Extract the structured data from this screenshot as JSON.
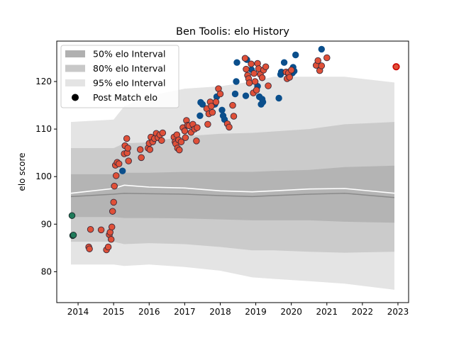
{
  "chart_data": {
    "type": "scatter",
    "title": "Ben Toolis: elo History",
    "xlabel": "",
    "ylabel": "elo score",
    "xlim": [
      2013.4,
      2023.3
    ],
    "ylim": [
      73.5,
      128.5
    ],
    "x_ticks": [
      2014,
      2015,
      2016,
      2017,
      2018,
      2019,
      2020,
      2021,
      2022,
      2023
    ],
    "y_ticks": [
      80,
      90,
      100,
      110,
      120
    ],
    "grid": false,
    "legend_position": "upper-left",
    "legend": [
      {
        "label": "50% elo Interval",
        "kind": "band",
        "color": "#b0b0b0"
      },
      {
        "label": "80% elo Interval",
        "kind": "band",
        "color": "#c8c8c8"
      },
      {
        "label": "95% elo Interval",
        "kind": "band",
        "color": "#e4e4e4"
      },
      {
        "label": "Post Match elo",
        "kind": "marker",
        "color": "#000000"
      }
    ],
    "colors": {
      "win": "#e05038",
      "loss": "#0b4f8c",
      "draw": "#1f7a5a",
      "latest_fill": "#e05038",
      "latest_edge": "#cc0000",
      "mean_line": "#ffffff",
      "median_line": "#8a8a8a",
      "band50": "#b0b0b0",
      "band80": "#c8c8c8",
      "band95": "#e4e4e4"
    },
    "bands": {
      "x": [
        2013.8,
        2015.0,
        2015.3,
        2016.0,
        2017.0,
        2018.0,
        2018.9,
        2019.5,
        2020.5,
        2021.5,
        2022.9
      ],
      "p2_5": [
        81.5,
        81.5,
        81.2,
        81.5,
        81.0,
        80.2,
        78.8,
        78.5,
        78.0,
        77.5,
        76.2
      ],
      "p10": [
        86.3,
        86.3,
        85.8,
        86.0,
        85.8,
        85.2,
        84.5,
        84.5,
        84.2,
        84.0,
        84.2
      ],
      "p25": [
        91.5,
        91.5,
        91.3,
        91.3,
        91.2,
        91.0,
        90.8,
        90.8,
        90.8,
        90.5,
        90.3
      ],
      "median": [
        95.8,
        96.3,
        96.5,
        96.4,
        96.3,
        96.0,
        95.8,
        96.0,
        96.3,
        96.5,
        95.6
      ],
      "mean": [
        96.5,
        97.5,
        98.2,
        97.8,
        97.6,
        97.0,
        96.8,
        97.0,
        97.4,
        97.5,
        96.5
      ],
      "p75": [
        100.5,
        100.5,
        100.8,
        100.8,
        101.0,
        101.0,
        101.0,
        101.2,
        101.4,
        102.0,
        102.3
      ],
      "p90": [
        106.0,
        106.0,
        107.0,
        107.2,
        108.5,
        109.0,
        109.2,
        109.5,
        110.0,
        111.0,
        111.5
      ],
      "p97_5": [
        111.5,
        112.0,
        114.8,
        117.0,
        118.5,
        119.0,
        120.0,
        121.0,
        121.0,
        121.0,
        119.8
      ]
    },
    "series": [
      {
        "name": "",
        "result": "draw",
        "points": [
          [
            2013.83,
            91.8
          ],
          [
            2013.85,
            87.6
          ],
          [
            2013.87,
            87.7
          ]
        ]
      },
      {
        "name": "",
        "result": "loss",
        "points": [
          [
            2015.25,
            101.2
          ],
          [
            2017.43,
            112.8
          ],
          [
            2017.45,
            115.6
          ],
          [
            2017.5,
            115.2
          ],
          [
            2017.85,
            115.2
          ],
          [
            2017.9,
            116.8
          ],
          [
            2018.05,
            114.0
          ],
          [
            2018.08,
            112.8
          ],
          [
            2018.12,
            112.0
          ],
          [
            2018.42,
            117.4
          ],
          [
            2018.45,
            120.0
          ],
          [
            2018.47,
            124.0
          ],
          [
            2018.72,
            117.0
          ],
          [
            2018.75,
            124.6
          ],
          [
            2018.88,
            122.5
          ],
          [
            2019.05,
            119.0
          ],
          [
            2019.1,
            116.8
          ],
          [
            2019.15,
            115.2
          ],
          [
            2019.18,
            116.3
          ],
          [
            2019.2,
            115.7
          ],
          [
            2019.65,
            116.5
          ],
          [
            2019.7,
            121.5
          ],
          [
            2019.72,
            122.0
          ],
          [
            2019.8,
            124.0
          ],
          [
            2019.95,
            122.0
          ],
          [
            2020.03,
            121.8
          ],
          [
            2020.05,
            123.0
          ],
          [
            2020.08,
            122.2
          ],
          [
            2020.12,
            125.6
          ],
          [
            2020.85,
            126.8
          ]
        ]
      },
      {
        "name": "",
        "result": "win",
        "points": [
          [
            2014.3,
            85.2
          ],
          [
            2014.32,
            84.8
          ],
          [
            2014.35,
            88.9
          ],
          [
            2014.65,
            88.8
          ],
          [
            2014.8,
            84.6
          ],
          [
            2014.85,
            85.2
          ],
          [
            2014.88,
            87.8
          ],
          [
            2014.9,
            88.3
          ],
          [
            2014.93,
            86.8
          ],
          [
            2014.95,
            89.4
          ],
          [
            2014.97,
            92.7
          ],
          [
            2015.0,
            94.6
          ],
          [
            2015.02,
            98.0
          ],
          [
            2015.05,
            102.4
          ],
          [
            2015.07,
            100.2
          ],
          [
            2015.1,
            103.0
          ],
          [
            2015.15,
            102.7
          ],
          [
            2015.3,
            104.8
          ],
          [
            2015.32,
            106.5
          ],
          [
            2015.37,
            108.0
          ],
          [
            2015.38,
            105.0
          ],
          [
            2015.4,
            106.0
          ],
          [
            2015.42,
            103.3
          ],
          [
            2015.75,
            105.7
          ],
          [
            2015.78,
            104.0
          ],
          [
            2015.97,
            106.0
          ],
          [
            2016.0,
            107.0
          ],
          [
            2016.02,
            105.7
          ],
          [
            2016.05,
            108.3
          ],
          [
            2016.1,
            107.3
          ],
          [
            2016.15,
            108.0
          ],
          [
            2016.2,
            109.1
          ],
          [
            2016.25,
            108.2
          ],
          [
            2016.3,
            108.8
          ],
          [
            2016.35,
            107.6
          ],
          [
            2016.38,
            109.2
          ],
          [
            2016.7,
            108.3
          ],
          [
            2016.73,
            107.3
          ],
          [
            2016.75,
            106.9
          ],
          [
            2016.78,
            108.8
          ],
          [
            2016.8,
            106.0
          ],
          [
            2016.83,
            107.7
          ],
          [
            2016.85,
            105.6
          ],
          [
            2016.9,
            107.3
          ],
          [
            2016.95,
            110.3
          ],
          [
            2017.0,
            109.6
          ],
          [
            2017.02,
            108.2
          ],
          [
            2017.05,
            111.8
          ],
          [
            2017.08,
            110.8
          ],
          [
            2017.12,
            110.7
          ],
          [
            2017.18,
            109.3
          ],
          [
            2017.23,
            111.0
          ],
          [
            2017.28,
            110.0
          ],
          [
            2017.33,
            107.5
          ],
          [
            2017.35,
            110.3
          ],
          [
            2017.62,
            114.3
          ],
          [
            2017.65,
            111.0
          ],
          [
            2017.68,
            113.2
          ],
          [
            2017.72,
            115.7
          ],
          [
            2017.75,
            114.8
          ],
          [
            2017.78,
            113.5
          ],
          [
            2017.88,
            115.7
          ],
          [
            2017.95,
            118.5
          ],
          [
            2018.0,
            117.4
          ],
          [
            2018.2,
            111.1
          ],
          [
            2018.25,
            110.4
          ],
          [
            2018.35,
            115.0
          ],
          [
            2018.38,
            112.7
          ],
          [
            2018.7,
            124.9
          ],
          [
            2018.73,
            122.6
          ],
          [
            2018.77,
            121.3
          ],
          [
            2018.8,
            120.6
          ],
          [
            2018.82,
            119.7
          ],
          [
            2018.87,
            123.7
          ],
          [
            2018.93,
            117.6
          ],
          [
            2018.95,
            121.7
          ],
          [
            2018.98,
            120.0
          ],
          [
            2019.02,
            118.2
          ],
          [
            2019.05,
            123.8
          ],
          [
            2019.08,
            122.7
          ],
          [
            2019.13,
            121.5
          ],
          [
            2019.18,
            120.8
          ],
          [
            2019.22,
            122.4
          ],
          [
            2019.28,
            123.1
          ],
          [
            2019.35,
            119.1
          ],
          [
            2019.85,
            122.0
          ],
          [
            2019.88,
            120.6
          ],
          [
            2019.92,
            121.8
          ],
          [
            2019.95,
            120.9
          ],
          [
            2020.0,
            122.4
          ],
          [
            2020.7,
            123.4
          ],
          [
            2020.75,
            124.4
          ],
          [
            2020.8,
            122.3
          ],
          [
            2020.85,
            123.3
          ],
          [
            2021.0,
            125.0
          ]
        ]
      },
      {
        "name": "",
        "result": "latest",
        "points": [
          [
            2022.95,
            123.1
          ]
        ]
      }
    ]
  }
}
